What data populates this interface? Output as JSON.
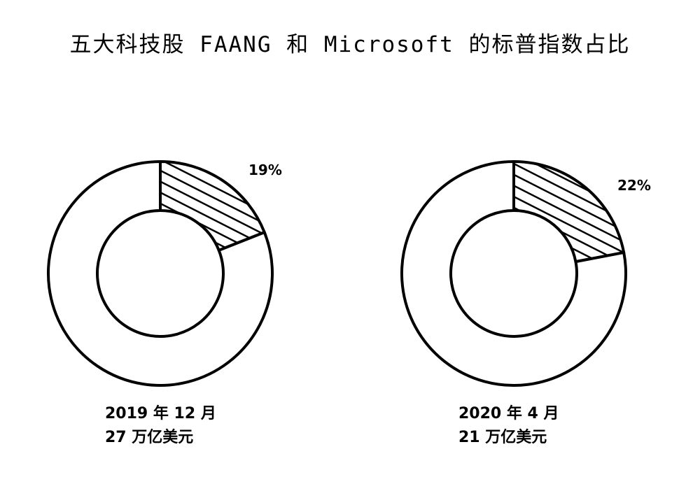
{
  "chart_data": [
    {
      "type": "pie",
      "title": "五大科技股 FAANG 和 Microsoft 的标普指数占比",
      "donut": true,
      "slices": [
        {
          "label": "19%",
          "value": 19,
          "fill": "hatched"
        },
        {
          "value": 81,
          "fill": "#ffffff"
        }
      ],
      "caption": [
        "2019 年 12 月",
        "27 万亿美元"
      ]
    },
    {
      "type": "pie",
      "donut": true,
      "slices": [
        {
          "label": "22%",
          "value": 22,
          "fill": "hatched"
        },
        {
          "value": 78,
          "fill": "#ffffff"
        }
      ],
      "caption": [
        "2020 年 4 月",
        "21 万亿美元"
      ]
    }
  ],
  "colors": {
    "stroke": "#000000",
    "background": "#ffffff"
  }
}
